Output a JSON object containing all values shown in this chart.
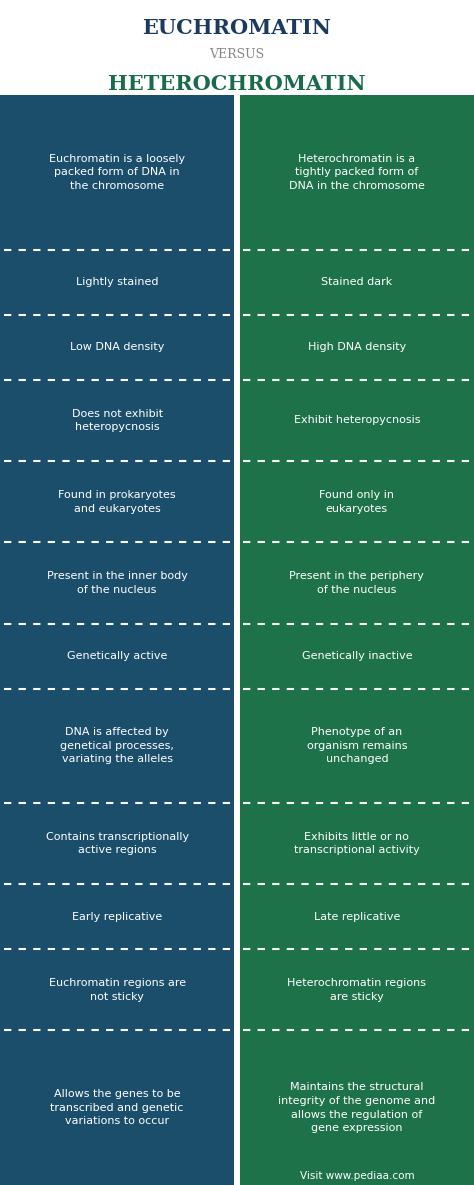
{
  "title_left": "EUCHROMATIN",
  "title_versus": "VERSUS",
  "title_right": "HETEROCHROMATIN",
  "title_left_color": "#1c3a5e",
  "title_versus_color": "#888888",
  "title_right_color": "#1a6b4a",
  "bg_color": "#ffffff",
  "left_bg": "#1b4e6b",
  "right_bg": "#1e7249",
  "text_color": "#ffffff",
  "rows": [
    {
      "left": "Euchromatin is a loosely\npacked form of DNA in\nthe chromosome",
      "right": "Heterochromatin is a\ntightly packed form of\nDNA in the chromosome"
    },
    {
      "left": "Lightly stained",
      "right": "Stained dark"
    },
    {
      "left": "Low DNA density",
      "right": "High DNA density"
    },
    {
      "left": "Does not exhibit\nheteropycnosis",
      "right": "Exhibit heteropycnosis"
    },
    {
      "left": "Found in prokaryotes\nand eukaryotes",
      "right": "Found only in\neukaryotes"
    },
    {
      "left": "Present in the inner body\nof the nucleus",
      "right": "Present in the periphery\nof the nucleus"
    },
    {
      "left": "Genetically active",
      "right": "Genetically inactive"
    },
    {
      "left": "DNA is affected by\ngenetical processes,\nvariating the alleles",
      "right": "Phenotype of an\norganism remains\nunchanged"
    },
    {
      "left": "Contains transcriptionally\nactive regions",
      "right": "Exhibits little or no\ntranscriptional activity"
    },
    {
      "left": "Early replicative",
      "right": "Late replicative"
    },
    {
      "left": "Euchromatin regions are\nnot sticky",
      "right": "Heterochromatin regions\nare sticky"
    },
    {
      "left": "Allows the genes to be\ntranscribed and genetic\nvariations to occur",
      "right": "Maintains the structural\nintegrity of the genome and\nallows the regulation of\ngene expression"
    }
  ],
  "row_heights": [
    3.8,
    1.6,
    1.6,
    2.0,
    2.0,
    2.0,
    1.6,
    2.8,
    2.0,
    1.6,
    2.0,
    3.8
  ],
  "watermark": "Visit www.pediaa.com"
}
